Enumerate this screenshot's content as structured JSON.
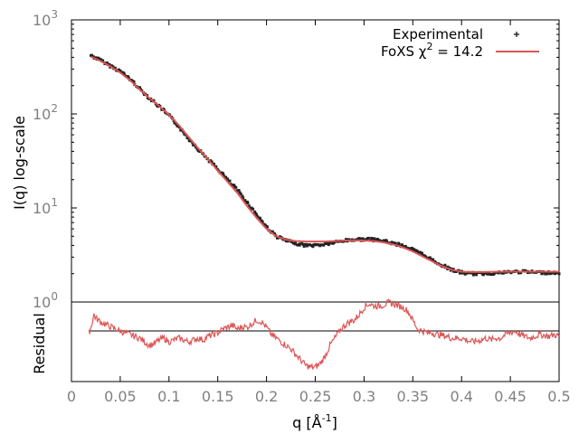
{
  "chart_data": [
    {
      "type": "scatter",
      "title": "",
      "xlabel": "q [Å",
      "xlabel_sup": "-1",
      "xlabel_end": "]",
      "ylabel": "I(q) log-scale",
      "yscale": "log",
      "xlim": [
        0,
        0.5
      ],
      "ylim": [
        1,
        1000
      ],
      "x_ticks": [
        0,
        0.05,
        0.1,
        0.15,
        0.2,
        0.25,
        0.3,
        0.35,
        0.4,
        0.45,
        0.5
      ],
      "x_tick_labels": [
        "0",
        "0.05",
        "0.1",
        "0.15",
        "0.2",
        "0.25",
        "0.3",
        "0.35",
        "0.4",
        "0.45",
        "0.5"
      ],
      "y_ticks": [
        {
          "base": "10",
          "exp": "0",
          "value": 1
        },
        {
          "base": "10",
          "exp": "1",
          "value": 10
        },
        {
          "base": "10",
          "exp": "2",
          "value": 100
        },
        {
          "base": "10",
          "exp": "3",
          "value": 1000
        }
      ],
      "grid": false,
      "legend_position": "top-right",
      "series": [
        {
          "name": "Experimental",
          "style": "points",
          "color": "#222222",
          "x": [
            0.02,
            0.03,
            0.04,
            0.05,
            0.06,
            0.07,
            0.08,
            0.09,
            0.1,
            0.11,
            0.12,
            0.13,
            0.14,
            0.15,
            0.16,
            0.17,
            0.18,
            0.19,
            0.2,
            0.21,
            0.22,
            0.23,
            0.24,
            0.25,
            0.26,
            0.27,
            0.28,
            0.29,
            0.3,
            0.31,
            0.32,
            0.33,
            0.34,
            0.35,
            0.36,
            0.37,
            0.38,
            0.39,
            0.4,
            0.41,
            0.42,
            0.43,
            0.44,
            0.45,
            0.46,
            0.47,
            0.48,
            0.49,
            0.5
          ],
          "y": [
            420,
            370,
            325,
            285,
            235,
            185,
            148,
            120,
            96,
            74,
            55,
            42,
            33,
            26,
            20,
            15.5,
            11.5,
            8.5,
            6.3,
            5.0,
            4.5,
            4.2,
            4.0,
            4.0,
            4.1,
            4.3,
            4.5,
            4.6,
            4.65,
            4.6,
            4.45,
            4.2,
            3.95,
            3.6,
            3.2,
            2.8,
            2.45,
            2.2,
            2.05,
            2.0,
            2.0,
            2.02,
            2.05,
            2.08,
            2.1,
            2.08,
            2.06,
            2.05,
            2.05
          ]
        },
        {
          "name": "FoXS χ",
          "name_sup": "2",
          "name_end": " = 14.2",
          "style": "line",
          "color": "#dd5555",
          "x": [
            0.02,
            0.03,
            0.04,
            0.05,
            0.06,
            0.07,
            0.08,
            0.09,
            0.1,
            0.11,
            0.12,
            0.13,
            0.14,
            0.15,
            0.16,
            0.17,
            0.18,
            0.19,
            0.2,
            0.21,
            0.22,
            0.23,
            0.24,
            0.25,
            0.26,
            0.27,
            0.28,
            0.29,
            0.3,
            0.31,
            0.32,
            0.33,
            0.34,
            0.35,
            0.36,
            0.37,
            0.38,
            0.39,
            0.4,
            0.41,
            0.42,
            0.43,
            0.44,
            0.45,
            0.46,
            0.47,
            0.48,
            0.49,
            0.5
          ],
          "y": [
            405,
            365,
            320,
            275,
            228,
            182,
            147,
            121,
            98,
            76,
            57,
            43,
            33,
            25,
            19,
            14.5,
            10.5,
            7.8,
            6.0,
            5.0,
            4.6,
            4.45,
            4.4,
            4.4,
            4.4,
            4.45,
            4.5,
            4.52,
            4.5,
            4.45,
            4.3,
            4.1,
            3.8,
            3.45,
            3.05,
            2.7,
            2.4,
            2.2,
            2.1,
            2.08,
            2.08,
            2.09,
            2.1,
            2.1,
            2.1,
            2.1,
            2.1,
            2.1,
            2.1
          ]
        }
      ]
    },
    {
      "type": "line",
      "title": "",
      "xlabel": "",
      "ylabel": "Residual",
      "xlim": [
        0,
        0.5
      ],
      "ylim": [
        -1,
        1
      ],
      "reference_line": 0,
      "series": [
        {
          "style": "line",
          "color": "#dd5555",
          "x": [
            0.018,
            0.02,
            0.023,
            0.025,
            0.03,
            0.035,
            0.04,
            0.045,
            0.05,
            0.055,
            0.06,
            0.065,
            0.07,
            0.075,
            0.08,
            0.085,
            0.09,
            0.095,
            0.1,
            0.105,
            0.11,
            0.115,
            0.12,
            0.125,
            0.13,
            0.135,
            0.14,
            0.145,
            0.15,
            0.155,
            0.16,
            0.165,
            0.17,
            0.175,
            0.18,
            0.185,
            0.19,
            0.195,
            0.2,
            0.205,
            0.21,
            0.215,
            0.22,
            0.225,
            0.23,
            0.235,
            0.24,
            0.245,
            0.25,
            0.255,
            0.26,
            0.265,
            0.27,
            0.275,
            0.28,
            0.285,
            0.29,
            0.295,
            0.3,
            0.305,
            0.31,
            0.315,
            0.32,
            0.325,
            0.33,
            0.335,
            0.34,
            0.345,
            0.35,
            0.355,
            0.36,
            0.365,
            0.37,
            0.375,
            0.38,
            0.385,
            0.39,
            0.395,
            0.4,
            0.405,
            0.41,
            0.415,
            0.42,
            0.425,
            0.43,
            0.435,
            0.44,
            0.445,
            0.45,
            0.455,
            0.46,
            0.465,
            0.47,
            0.475,
            0.48,
            0.485,
            0.49,
            0.495,
            0.5
          ],
          "y": [
            -0.05,
            0.1,
            0.45,
            0.35,
            0.25,
            0.18,
            0.12,
            0.05,
            0.0,
            -0.05,
            -0.1,
            -0.15,
            -0.2,
            -0.3,
            -0.4,
            -0.35,
            -0.25,
            -0.2,
            -0.3,
            -0.25,
            -0.2,
            -0.25,
            -0.3,
            -0.25,
            -0.2,
            -0.25,
            -0.15,
            -0.1,
            -0.05,
            0.05,
            0.1,
            0.15,
            0.05,
            0.12,
            0.1,
            0.2,
            0.3,
            0.25,
            0.1,
            -0.1,
            -0.2,
            -0.3,
            -0.4,
            -0.5,
            -0.65,
            -0.8,
            -0.95,
            -1.0,
            -1.0,
            -0.9,
            -0.7,
            -0.4,
            -0.2,
            0.0,
            0.15,
            0.25,
            0.3,
            0.45,
            0.65,
            0.75,
            0.7,
            0.68,
            0.72,
            0.78,
            0.75,
            0.7,
            0.65,
            0.55,
            0.3,
            0.05,
            0.0,
            -0.05,
            -0.05,
            -0.1,
            -0.12,
            -0.15,
            -0.2,
            -0.2,
            -0.2,
            -0.25,
            -0.3,
            -0.28,
            -0.25,
            -0.2,
            -0.25,
            -0.2,
            -0.2,
            -0.1,
            -0.05,
            0.0,
            -0.1,
            -0.15,
            -0.2,
            -0.15,
            -0.1,
            -0.12,
            -0.15,
            -0.1,
            -0.15
          ]
        }
      ]
    }
  ]
}
